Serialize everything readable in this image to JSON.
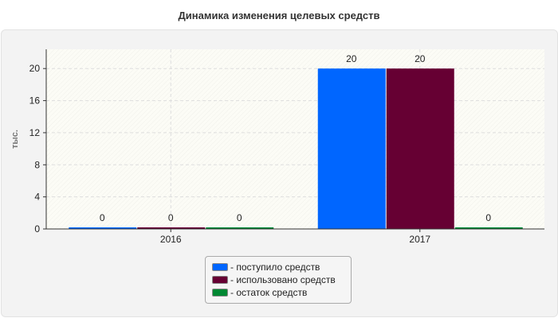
{
  "chart_data": {
    "type": "bar",
    "title": "Динамика изменения целевых средств",
    "ylabel": "тыс.",
    "xlabel": "",
    "categories": [
      "2016",
      "2017"
    ],
    "series": [
      {
        "name": "- поступило средств",
        "color": "#0066ff",
        "values": [
          0,
          20
        ]
      },
      {
        "name": "- использовано средств",
        "color": "#660033",
        "values": [
          0,
          20
        ]
      },
      {
        "name": "- остаток средств",
        "color": "#008833",
        "values": [
          0,
          0
        ]
      }
    ],
    "ylim": [
      0,
      22.4
    ],
    "yticks": [
      0,
      4,
      8,
      12,
      16,
      20
    ],
    "grid": true,
    "legend": "bottom"
  }
}
